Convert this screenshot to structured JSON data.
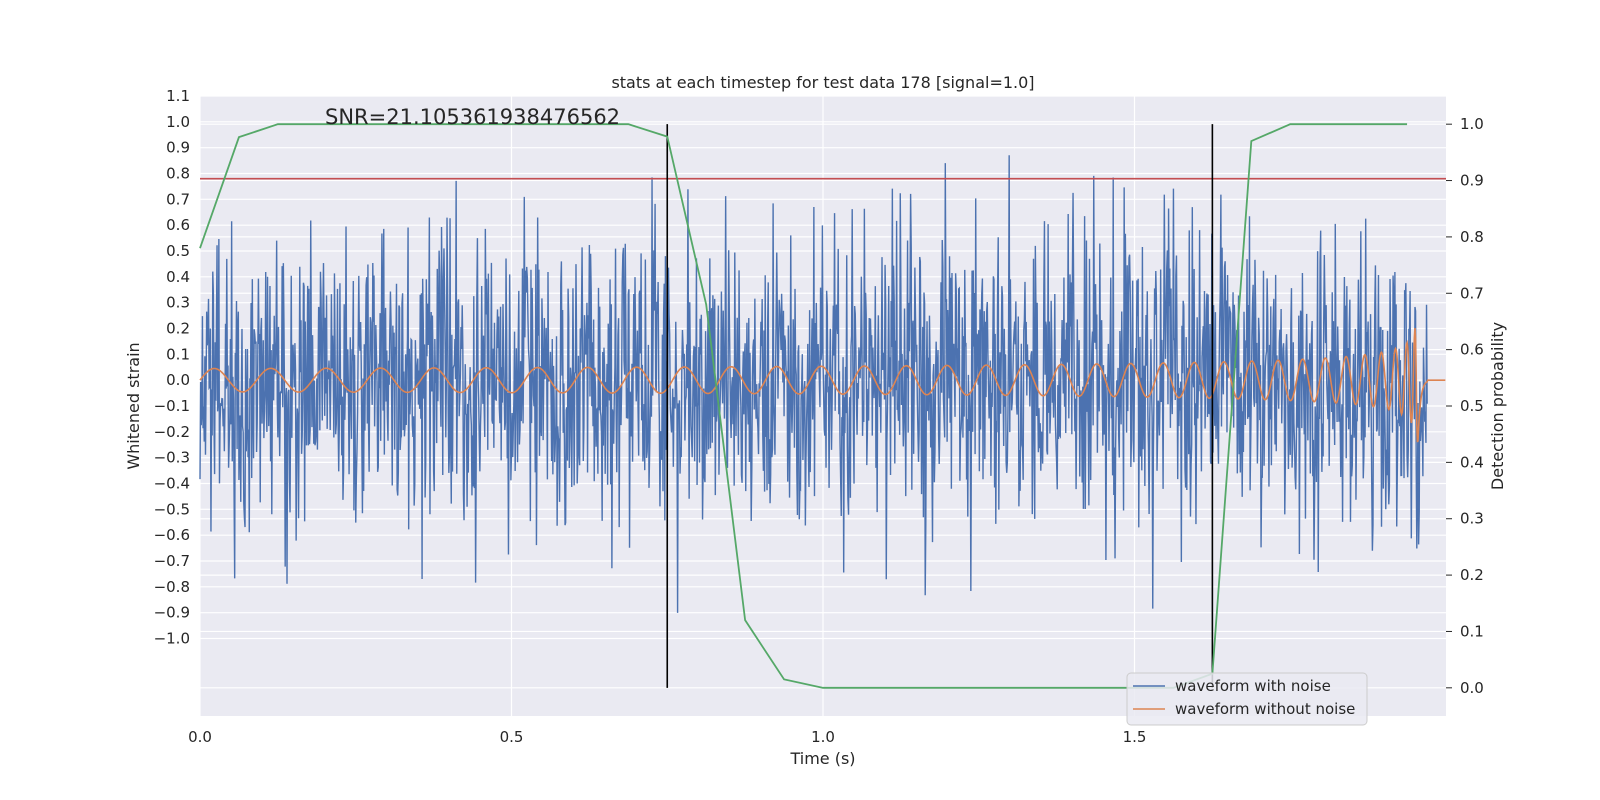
{
  "chart_data": {
    "type": "line",
    "title": "stats at each timestep for test data 178 [signal=1.0]",
    "xlabel": "Time (s)",
    "ylabel_left": "Whitened strain",
    "ylabel_right": "Detection probability",
    "xlim": [
      0.0,
      2.0
    ],
    "ylim_left": [
      -1.3,
      1.1
    ],
    "ylim_right": [
      -0.05,
      1.05
    ],
    "x_ticks": [
      0.0,
      0.5,
      1.0,
      1.5
    ],
    "x_tick_labels": [
      "0.0",
      "0.5",
      "1.0",
      "1.5"
    ],
    "y_left_ticks": [
      1.1,
      1.0,
      0.9,
      0.8,
      0.7,
      0.6,
      0.5,
      0.4,
      0.3,
      0.2,
      0.1,
      0.0,
      -0.1,
      -0.2,
      -0.3,
      -0.4,
      -0.5,
      -0.6,
      -0.7,
      -0.8,
      -0.9,
      -1.0
    ],
    "y_left_tick_labels": [
      "1.1",
      "1.0",
      "0.9",
      "0.8",
      "0.7",
      "0.6",
      "0.5",
      "0.4",
      "0.3",
      "0.2",
      "0.1",
      "0.0",
      "−0.1",
      "−0.2",
      "−0.3",
      "−0.4",
      "−0.5",
      "−0.6",
      "−0.7",
      "−0.8",
      "−0.9",
      "−1.0"
    ],
    "y_right_ticks": [
      1.0,
      0.9,
      0.8,
      0.7,
      0.6,
      0.5,
      0.4,
      0.3,
      0.2,
      0.1,
      0.0
    ],
    "y_right_tick_labels": [
      "1.0",
      "0.9",
      "0.8",
      "0.7",
      "0.6",
      "0.5",
      "0.4",
      "0.3",
      "0.2",
      "0.1",
      "0.0"
    ],
    "grid": true,
    "annotation": "SNR=21.105361938476562",
    "threshold_line": {
      "axis": "left",
      "y": 0.78,
      "color": "#c44e52"
    },
    "vertical_lines": [
      0.75,
      1.625
    ],
    "detection_probability": {
      "color": "#55a868",
      "x": [
        0.0,
        0.0625,
        0.125,
        0.1875,
        0.25,
        0.3125,
        0.375,
        0.4375,
        0.5,
        0.5625,
        0.625,
        0.6875,
        0.75,
        0.8125,
        0.875,
        0.9375,
        1.0,
        1.0625,
        1.125,
        1.1875,
        1.25,
        1.3125,
        1.375,
        1.4375,
        1.5,
        1.5625,
        1.625,
        1.6875,
        1.75,
        1.8125,
        1.875,
        1.9375
      ],
      "y": [
        0.78,
        0.977,
        1.0,
        1.0,
        1.0,
        1.0,
        1.0,
        1.0,
        1.0,
        1.0,
        1.0,
        1.0,
        0.978,
        0.68,
        0.12,
        0.015,
        0.0,
        0.0,
        0.0,
        0.0,
        0.0,
        0.0,
        0.0,
        0.0,
        0.0,
        0.0,
        0.025,
        0.97,
        1.0,
        1.0,
        1.0,
        1.0
      ]
    },
    "series": [
      {
        "name": "waveform with noise",
        "color": "#4c72b0",
        "style": "noise",
        "amplitude_std": 0.28,
        "min_observed": -0.94,
        "max_observed": 0.92
      },
      {
        "name": "waveform without noise",
        "color": "#dd8452",
        "style": "chirp",
        "initial_amplitude": 0.045,
        "peak_amplitude": 1.0,
        "merger_time": 1.955,
        "end_time": 1.97
      }
    ],
    "legend": {
      "position": "lower-right",
      "entries": [
        "waveform with noise",
        "waveform without noise"
      ]
    }
  }
}
